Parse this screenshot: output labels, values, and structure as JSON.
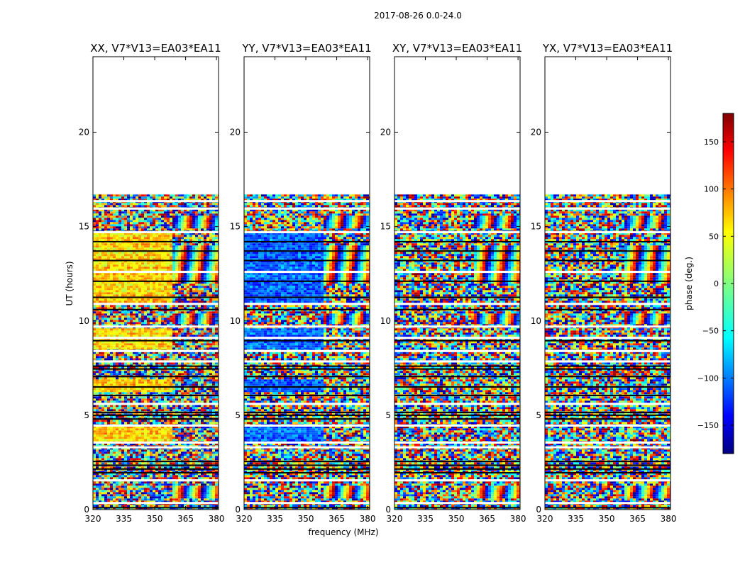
{
  "chart_data": {
    "type": "heatmap",
    "title": "2017-08-26 0.0-24.0",
    "xlabel": "frequency (MHz)",
    "ylabel": "UT (hours)",
    "xlim": [
      320,
      381
    ],
    "ylim": [
      0,
      24
    ],
    "xticks": [
      320,
      335,
      350,
      365,
      380
    ],
    "yticks": [
      0,
      5,
      10,
      15,
      20
    ],
    "data_end_ut": 16.7,
    "panels": [
      {
        "title": "XX, V7*V13=EA03*EA11",
        "pol": "XX",
        "base_phase": 60,
        "coherent": true
      },
      {
        "title": "YY, V7*V13=EA03*EA11",
        "pol": "YY",
        "base_phase": -100,
        "coherent": true
      },
      {
        "title": "XY, V7*V13=EA03*EA11",
        "pol": "XY",
        "base_phase": 0,
        "coherent": false
      },
      {
        "title": "YX, V7*V13=EA03*EA11",
        "pol": "YX",
        "base_phase": 0,
        "coherent": false
      }
    ],
    "colorbar": {
      "label": "phase (deg.)",
      "range": [
        -180,
        180
      ],
      "ticks": [
        150,
        100,
        50,
        0,
        -50,
        -100,
        -150
      ],
      "colormap": "jet"
    }
  },
  "colors": {
    "jet": [
      "#000080",
      "#0000ff",
      "#0080ff",
      "#00ffff",
      "#80ff80",
      "#ffff00",
      "#ff8000",
      "#ff0000",
      "#800000"
    ]
  }
}
